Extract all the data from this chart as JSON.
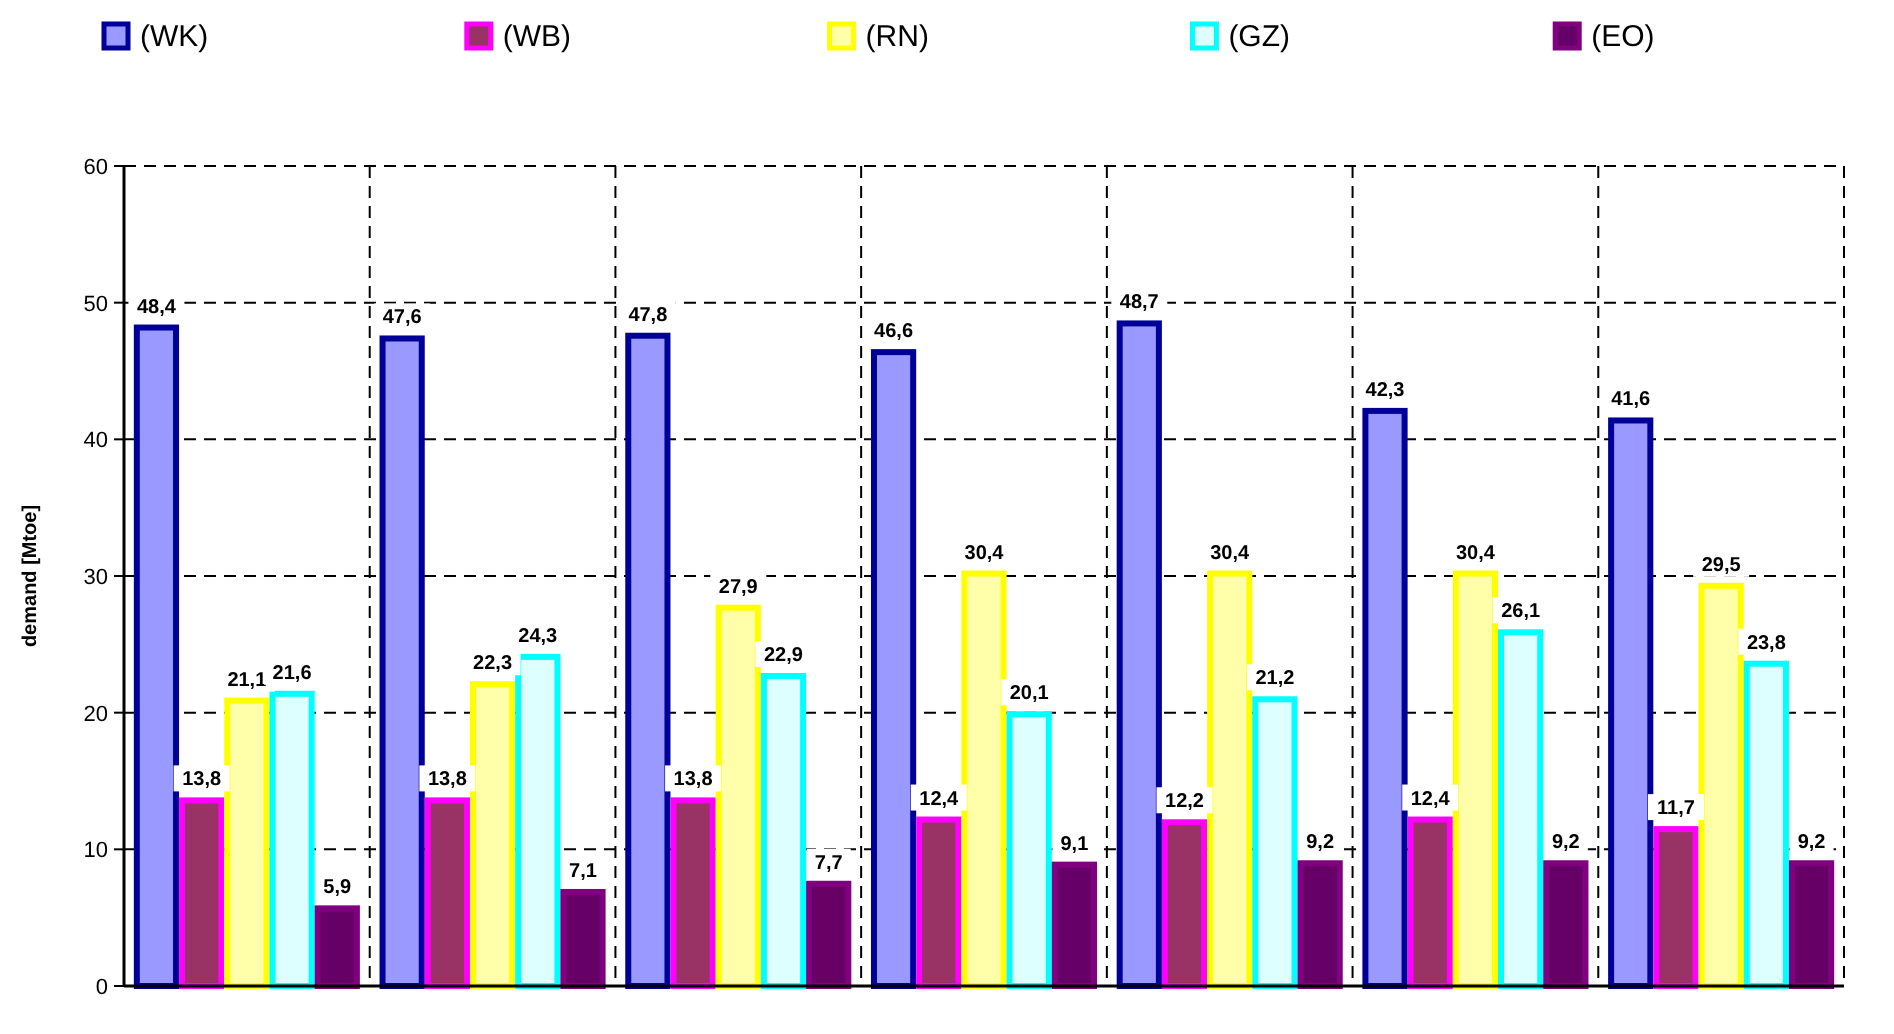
{
  "chart_data": {
    "type": "bar",
    "ylabel": "demand  [Mtoe]",
    "categories": [
      null,
      null,
      null,
      null,
      null,
      null,
      null
    ],
    "series": [
      {
        "name": "(WK)",
        "color": "#9999ff",
        "values": [
          48.4,
          47.6,
          47.8,
          46.6,
          48.7,
          42.3,
          41.6
        ],
        "value_labels": [
          "48,4",
          "47,6",
          "47,8",
          "46,6",
          "48,7",
          "42,3",
          "41,6"
        ]
      },
      {
        "name": "(WB)",
        "color": "#993366",
        "values": [
          13.8,
          13.8,
          13.8,
          12.4,
          12.2,
          12.4,
          11.7
        ],
        "value_labels": [
          "13,8",
          "13,8",
          "13,8",
          "12,4",
          "12,2",
          "12,4",
          "11,7"
        ]
      },
      {
        "name": "(RN)",
        "color": "#ffffaa",
        "values": [
          21.1,
          22.3,
          27.9,
          30.4,
          30.4,
          30.4,
          29.5
        ],
        "value_labels": [
          "21,1",
          "22,3",
          "27,9",
          "30,4",
          "30,4",
          "30,4",
          "29,5"
        ]
      },
      {
        "name": "(GZ)",
        "color": "#ddffff",
        "values": [
          21.6,
          24.3,
          22.9,
          20.1,
          21.2,
          26.1,
          23.8
        ],
        "value_labels": [
          "21,6",
          "24,3",
          "22,9",
          "20,1",
          "21,2",
          "26,1",
          "23,8"
        ]
      },
      {
        "name": "(EO)",
        "color": "#660066",
        "values": [
          5.9,
          7.1,
          7.7,
          9.1,
          9.2,
          9.2,
          9.2
        ],
        "value_labels": [
          "5,9",
          "7,1",
          "7,7",
          "9,1",
          "9,2",
          "9,2",
          "9,2"
        ]
      }
    ],
    "ylim": [
      0,
      60
    ],
    "yticks": [
      0,
      10,
      20,
      30,
      40,
      50,
      60
    ],
    "grid": true,
    "legend": "top"
  }
}
